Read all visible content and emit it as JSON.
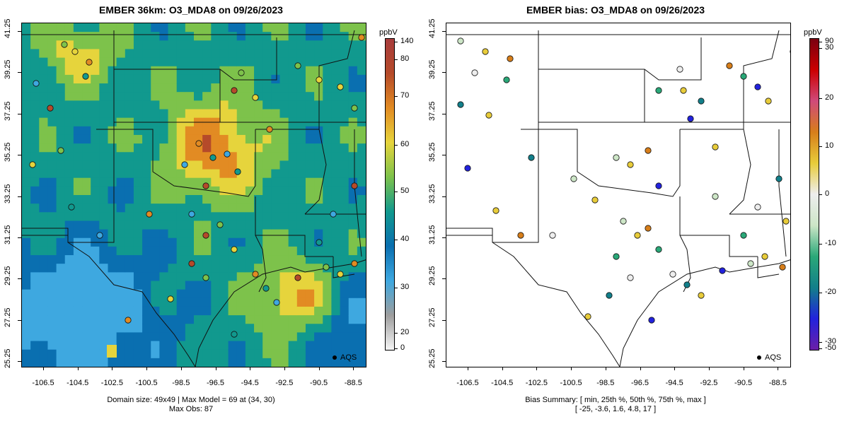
{
  "left": {
    "title": "EMBER 36km: O3_MDA8 on 09/26/2023",
    "colorbar_unit": "ppbV",
    "colorbar_ticks": [
      "140",
      "80",
      "70",
      "60",
      "50",
      "40",
      "30",
      "20",
      "0"
    ],
    "summary_line1": "Domain size: 49x49 | Max Model = 69 at (34, 30)",
    "summary_line2": "Max Obs: 87",
    "legend": "AQS"
  },
  "right": {
    "title": "EMBER bias: O3_MDA8 on 09/26/2023",
    "colorbar_unit": "ppbV",
    "colorbar_ticks": [
      "90",
      "30",
      "20",
      "10",
      "0",
      "-10",
      "-20",
      "-30",
      "-50"
    ],
    "summary_line1": "Bias Summary: [ min, 25th %, 50th %, 75th %, max ]",
    "summary_line2": "[ -25,   -3.6,   1.6,   4.8,   17 ]",
    "legend": "AQS"
  },
  "axes": {
    "x_ticks": [
      "-106.5",
      "-104.5",
      "-102.5",
      "-100.5",
      "-98.5",
      "-96.5",
      "-94.5",
      "-92.5",
      "-90.5",
      "-88.5"
    ],
    "y_ticks": [
      "41.25",
      "39.25",
      "37.25",
      "35.25",
      "33.25",
      "31.25",
      "29.25",
      "27.25",
      "25.25"
    ]
  },
  "colors": {
    "ozone_scale": [
      "#f5f5f5",
      "#9e9e9e",
      "#3ea8e0",
      "#0a6fb0",
      "#11998e",
      "#7dc24b",
      "#e6d43c",
      "#e28b23",
      "#b54a2a",
      "#a83c3c"
    ],
    "bias_scale": [
      "#6b1fa8",
      "#2222dd",
      "#127f8a",
      "#2aa878",
      "#cde6c7",
      "#eeeeee",
      "#e8cc3a",
      "#d77e1a",
      "#d04a7a",
      "#cc0000",
      "#7a0010"
    ]
  }
}
